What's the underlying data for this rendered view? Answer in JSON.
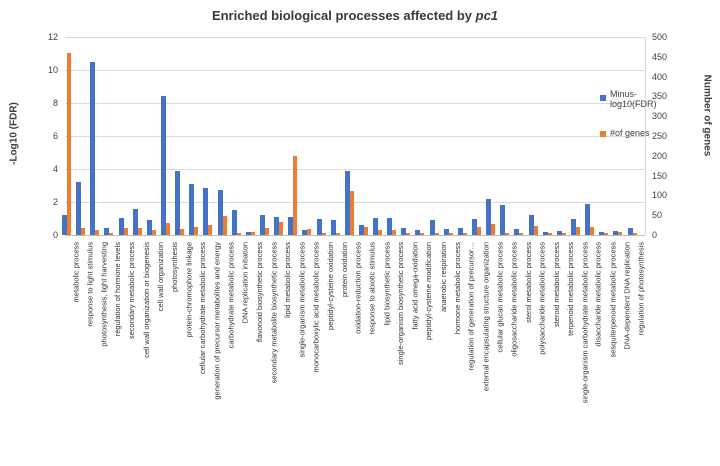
{
  "title": {
    "part1": "Enriched biological processes affected by ",
    "part2": "pc1"
  },
  "left_axis": {
    "title": "-Log10 (FDR)",
    "min": 0,
    "max": 12,
    "step": 2
  },
  "right_axis": {
    "title": "Number of genes",
    "min": 0,
    "max": 500,
    "step": 50
  },
  "legend": [
    {
      "line1": "Minus-",
      "line2": "log10(FDR)",
      "color": "#4472C4"
    },
    {
      "line1": "#of genes",
      "line2": "",
      "color": "#ED7D31"
    }
  ],
  "colors": {
    "fdr_bar": "#4472C4",
    "genes_bar": "#ED7D31",
    "gridline": "#d9d9d9"
  },
  "chart_data": {
    "type": "bar",
    "title": "Enriched biological processes affected by pc1",
    "xlabel": "",
    "ylabel_left": "-Log10 (FDR)",
    "ylabel_right": "Number of genes",
    "ylim_left": [
      0,
      12
    ],
    "ylim_right": [
      0,
      500
    ],
    "grid": true,
    "legend_position": "right",
    "categories": [
      "metabolic process",
      "response to light stimulus",
      "photosynthesis, light harvesting",
      "regulation of hormone levels",
      "secondary metabolic process",
      "cell wall organization or biogenesis",
      "cell wall organization",
      "photosynthesis",
      "protein-chromophore linkage",
      "cellular carbohydrate metabolic process",
      "generation of precursor metabolites and energy",
      "carbohydrate metabolic process",
      "DNA replication initiation",
      "flavonoid biosynthetic process",
      "secondary metabolite biosynthetic process",
      "lipid metabolic process",
      "single-organism metabolic process",
      "monocarboxylic acid metabolic process",
      "peptidyl-cysteine oxidation",
      "protein oxidation",
      "oxidation-reduction process",
      "response to abiotic stimulus",
      "lipid biosynthetic process",
      "single-organism biosynthetic process",
      "fatty acid omega-oxidation",
      "peptidyl-cysteine modification",
      "anaerobic respiration",
      "hormone metabolic process",
      "regulation of generation of precursor…",
      "external encapsulating structure organization",
      "cellular glucan metabolic process",
      "oligosaccharide metabolic process",
      "sterol metabolic process",
      "polysaccharide metabolic process",
      "steroid metabolic process",
      "terpenoid metabolic process",
      "single-organism carbohydrate metabolic process",
      "disaccharide metabolic process",
      "sesquiterpenoid metabolic process",
      "DNA-dependent DNA replication",
      "regulation of photosynthesis"
    ],
    "series": [
      {
        "name": "Minus-log10(FDR)",
        "axis": "left",
        "color": "#4472C4",
        "values": [
          1.2,
          3.2,
          10.5,
          0.45,
          1.05,
          1.55,
          0.9,
          8.4,
          3.9,
          3.1,
          2.85,
          2.75,
          1.5,
          0.2,
          1.2,
          1.1,
          1.1,
          0.3,
          0.95,
          0.9,
          3.9,
          0.6,
          1.05,
          1.05,
          0.45,
          0.3,
          0.9,
          0.35,
          0.4,
          0.95,
          2.2,
          1.8,
          0.35,
          1.2,
          0.2,
          0.25,
          1.0,
          1.9,
          0.2,
          0.25,
          0.45
        ]
      },
      {
        "name": "#of genes",
        "axis": "right",
        "color": "#ED7D31",
        "values": [
          460,
          19,
          13,
          4,
          17,
          17,
          13,
          31,
          15,
          21,
          25,
          48,
          4,
          8,
          17,
          33,
          200,
          15,
          4,
          4,
          110,
          21,
          13,
          13,
          4,
          4,
          6,
          4,
          6,
          21,
          27,
          6,
          4,
          23,
          6,
          6,
          21,
          21,
          6,
          8,
          4
        ]
      }
    ]
  }
}
